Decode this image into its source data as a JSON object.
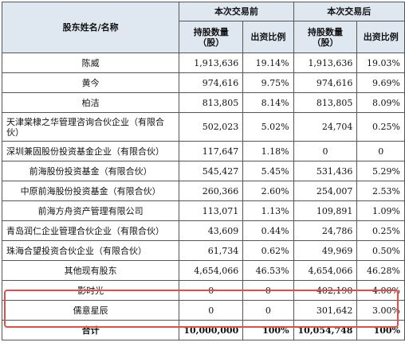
{
  "header": {
    "col_name": "股东姓名/名称",
    "before": "本次交易前",
    "after": "本次交易后",
    "shares": "持股数量（股）",
    "ratio": "出资比例"
  },
  "rows": [
    {
      "name": "陈威",
      "before_shares": "1,913,636",
      "before_ratio": "19.14%",
      "after_shares": "1,913,636",
      "after_ratio": "19.03%"
    },
    {
      "name": "黄今",
      "before_shares": "974,616",
      "before_ratio": "9.75%",
      "after_shares": "974,616",
      "after_ratio": "9.69%"
    },
    {
      "name": "柏洁",
      "before_shares": "813,805",
      "before_ratio": "8.14%",
      "after_shares": "813,805",
      "after_ratio": "8.09%"
    },
    {
      "name": "天津棠棣之华管理咨询合伙企业（有限合伙）",
      "before_shares": "502,023",
      "before_ratio": "5.02%",
      "after_shares": "24,704",
      "after_ratio": "0.25%"
    },
    {
      "name": "深圳兼固股份投资基金企业（有限合伙）",
      "before_shares": "117,647",
      "before_ratio": "1.18%",
      "after_shares": "0",
      "after_ratio": "0"
    },
    {
      "name": "前海股份投资基金（有限合伙）",
      "before_shares": "545,427",
      "before_ratio": "5.45%",
      "after_shares": "531,436",
      "after_ratio": "5.29%"
    },
    {
      "name": "中原前海股份投资基金（有限合伙）",
      "before_shares": "260,366",
      "before_ratio": "2.60%",
      "after_shares": "254,007",
      "after_ratio": "2.53%"
    },
    {
      "name": "前海方舟资产管理有限公司",
      "before_shares": "113,071",
      "before_ratio": "1.13%",
      "after_shares": "109,891",
      "after_ratio": "1.09%"
    },
    {
      "name": "青岛润仁企业管理合伙企业（有限合伙）",
      "before_shares": "43,609",
      "before_ratio": "0.44%",
      "after_shares": "24,786",
      "after_ratio": "0.25%"
    },
    {
      "name": "珠海合望投资合伙企业（有限合伙）",
      "before_shares": "61,734",
      "before_ratio": "0.62%",
      "after_shares": "49,969",
      "after_ratio": "0.50%"
    },
    {
      "name": "其他现有股东",
      "before_shares": "4,654,066",
      "before_ratio": "46.53%",
      "after_shares": "4,654,066",
      "after_ratio": "46.28%"
    },
    {
      "name": "影时光",
      "before_shares": "0",
      "before_ratio": "0",
      "after_shares": "402,190",
      "after_ratio": "4.00%"
    },
    {
      "name": "儒意星辰",
      "before_shares": "0",
      "before_ratio": "0",
      "after_shares": "301,642",
      "after_ratio": "3.00%"
    }
  ],
  "total": {
    "name": "合计",
    "before_shares": "10,000,000",
    "before_ratio": "100%",
    "after_shares": "10,054,748",
    "after_ratio": "100%"
  },
  "highlight_color": "#e0504a",
  "header_bg": "#dfe7f1"
}
